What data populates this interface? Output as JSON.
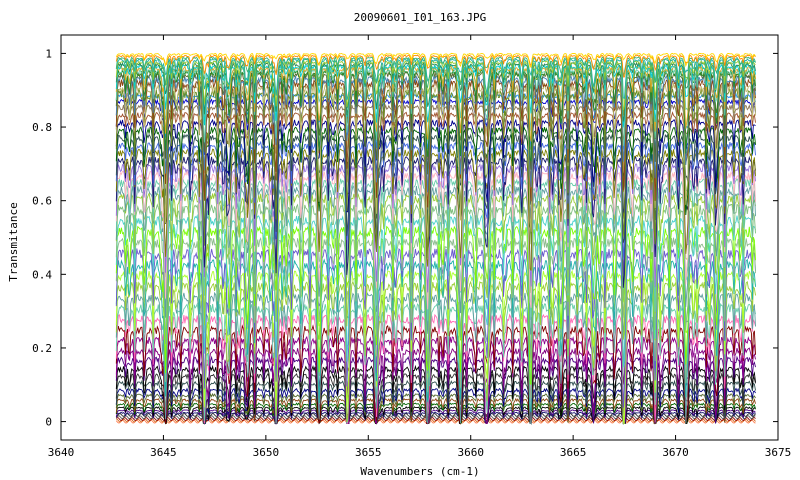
{
  "chart_data": {
    "type": "line",
    "title": "20090601_I01_163.JPG",
    "xlabel": "Wavenumbers (cm-1)",
    "ylabel": "Transmitance",
    "xlim": [
      3640,
      3675
    ],
    "ylim": [
      -0.05,
      1.05
    ],
    "x_ticks": [
      3640,
      3645,
      3650,
      3655,
      3660,
      3665,
      3670,
      3675
    ],
    "y_ticks": [
      0,
      0.2,
      0.4,
      0.6,
      0.8,
      1
    ],
    "x_tick_labels": [
      "3640",
      "3645",
      "3650",
      "3655",
      "3660",
      "3665",
      "3670",
      "3675"
    ],
    "y_tick_labels": [
      "0",
      "0.2",
      "0.4",
      "0.6",
      "0.8",
      "1"
    ],
    "x_range": [
      3642.7,
      3673.9
    ],
    "grid": false,
    "legend": "none",
    "series_note": "many overlapping transmittance spectra",
    "series_baselines": [
      1.0,
      0.995,
      0.99,
      0.985,
      0.98,
      0.975,
      0.97,
      0.965,
      0.96,
      0.955,
      0.95,
      0.94,
      0.93,
      0.92,
      0.905,
      0.89,
      0.875,
      0.86,
      0.84,
      0.82,
      0.8,
      0.78,
      0.76,
      0.74,
      0.72,
      0.7,
      0.68,
      0.66,
      0.64,
      0.62,
      0.59,
      0.56,
      0.53,
      0.5,
      0.47,
      0.44,
      0.41,
      0.38,
      0.35,
      0.32,
      0.29,
      0.26,
      0.23,
      0.2,
      0.175,
      0.15,
      0.13,
      0.11,
      0.09,
      0.075,
      0.062,
      0.05,
      0.04,
      0.032,
      0.025,
      0.018,
      0.012,
      0.007,
      0.003,
      0.0
    ],
    "series_colors": [
      "#ffd700",
      "#ff8c00",
      "#3cb371",
      "#20b2aa",
      "#9acd32",
      "#2e8b57",
      "#00ced1",
      "#daa520",
      "#66cdaa",
      "#228b22",
      "#556b2f",
      "#4682b4",
      "#8b4513",
      "#bdb76b",
      "#6b8e23",
      "#1e90ff",
      "#0000cd",
      "#8b7355",
      "#a0522d",
      "#00008b",
      "#006400",
      "#2f4f4f",
      "#4169e1",
      "#808000",
      "#191970",
      "#9370db",
      "#ffb6c1",
      "#66cdaa",
      "#5f9ea0",
      "#9acd32",
      "#7fbf7f",
      "#48d1cc",
      "#7cfc00",
      "#8fbc8f",
      "#6a5acd",
      "#20b2aa",
      "#adff2f",
      "#9acd32",
      "#5f9ea0",
      "#66cdaa",
      "#ff69b4",
      "#800000",
      "#8b008b",
      "#800080",
      "#4b0082",
      "#000000",
      "#333333",
      "#2f4f4f",
      "#000080",
      "#556b2f",
      "#8b4513",
      "#006400",
      "#000000",
      "#4b0082",
      "#191970",
      "#2f2f2f",
      "#5a5a5a",
      "#8b0000",
      "#d2691e",
      "#ff7f50"
    ],
    "strong_line_positions": [
      3645.1,
      3647.0,
      3648.2,
      3649.1,
      3650.5,
      3652.6,
      3654.0,
      3655.4,
      3657.9,
      3659.5,
      3660.8,
      3662.9,
      3664.4,
      3666.0,
      3667.5,
      3669.0,
      3670.5,
      3672.0
    ],
    "peak_spacing": 0.45
  }
}
